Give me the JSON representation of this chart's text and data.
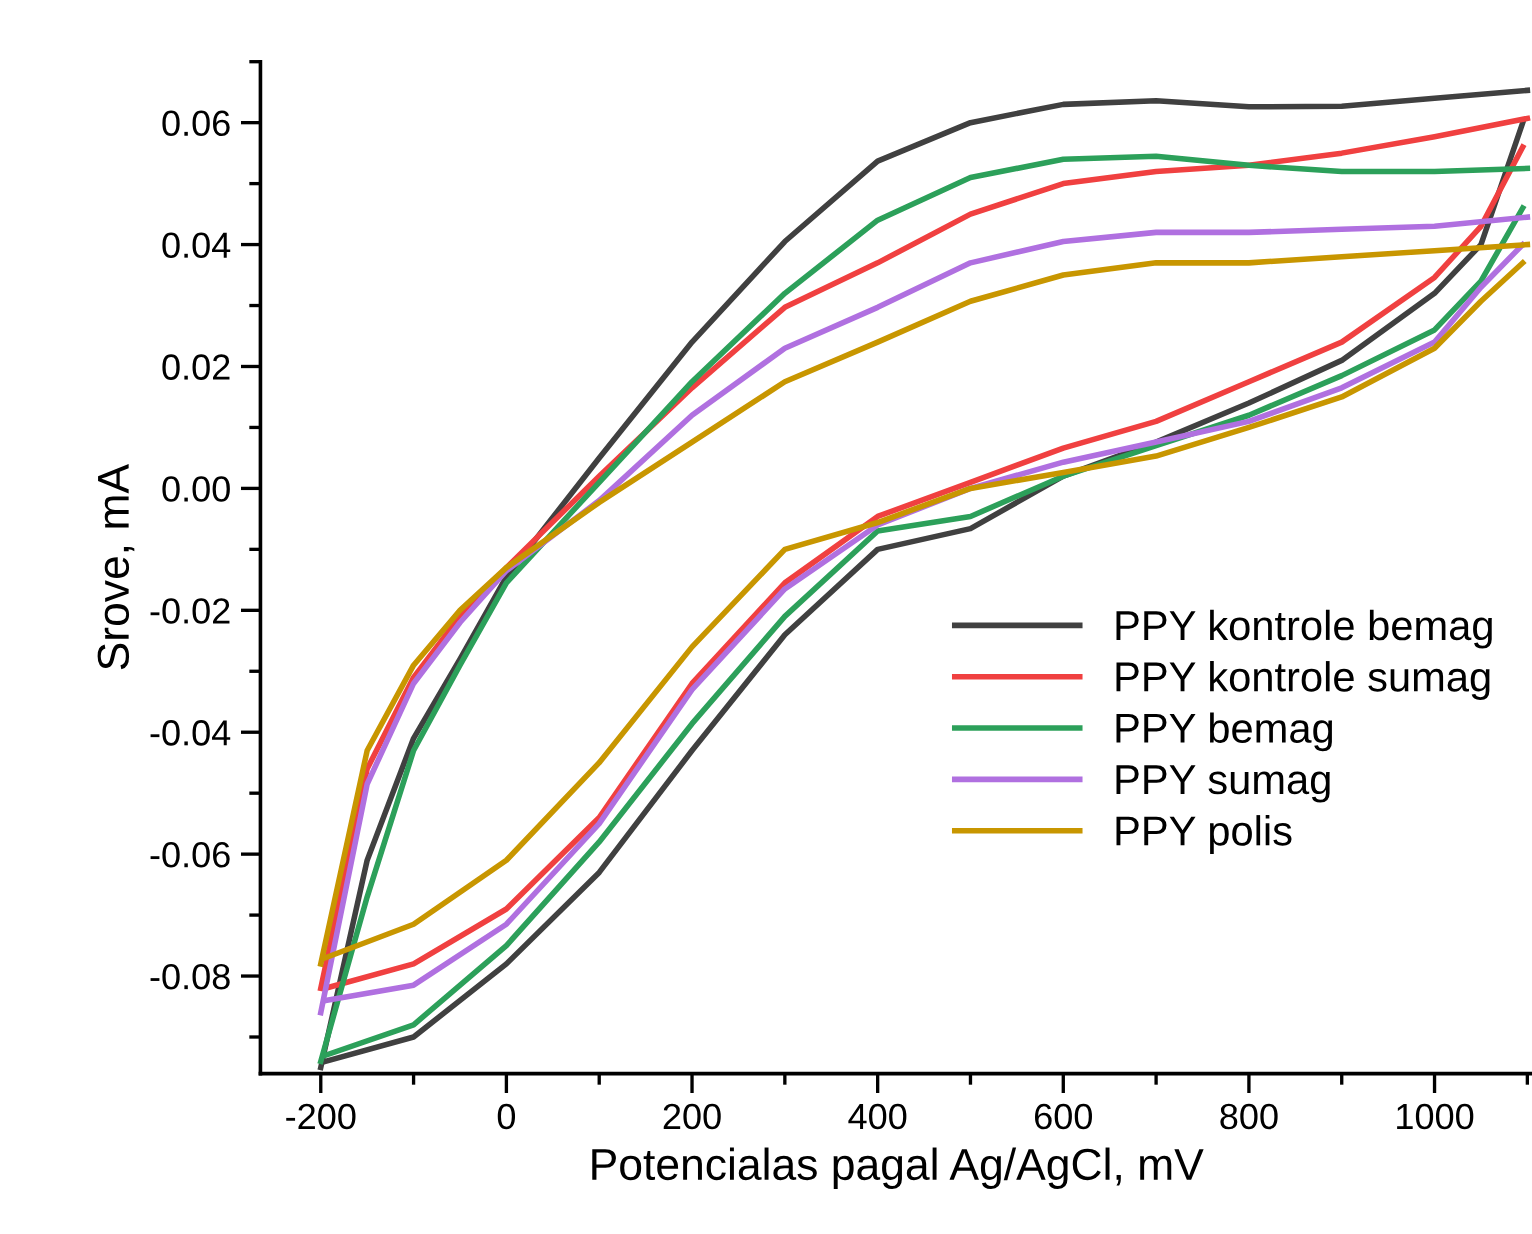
{
  "chart_data": {
    "type": "line",
    "xlabel": "Potencialas pagal Ag/AgCl, mV",
    "ylabel": "Srove, mA",
    "xlim": [
      -265,
      1105
    ],
    "ylim": [
      -0.096,
      0.07
    ],
    "xticks": [
      -200,
      0,
      200,
      400,
      600,
      800,
      1000
    ],
    "yticks": [
      {
        "value": -0.08,
        "label": "-0.08"
      },
      {
        "value": -0.06,
        "label": "-0.06"
      },
      {
        "value": -0.04,
        "label": "-0.04"
      },
      {
        "value": -0.02,
        "label": "-0.02"
      },
      {
        "value": 0,
        "label": "0.00"
      },
      {
        "value": 0.02,
        "label": "0.02"
      },
      {
        "value": 0.04,
        "label": "0.04"
      },
      {
        "value": 0.06,
        "label": "0.06"
      }
    ],
    "grid": false,
    "legend": "bottom right",
    "marker": "none",
    "line_style": "solid",
    "series": [
      {
        "name": "PPY kontrole bemag",
        "color": "#404040",
        "x": [
          -200,
          -150,
          -100,
          -50,
          0,
          100,
          200,
          300,
          400,
          500,
          600,
          700,
          800,
          900,
          1000,
          1100
        ],
        "values": [
          -0.095,
          -0.061,
          -0.041,
          -0.028,
          -0.0145,
          0.005,
          0.024,
          0.0405,
          0.0537,
          0.06,
          0.063,
          0.0636,
          0.0626,
          0.0627,
          0.064,
          0.0653
        ]
      },
      {
        "color": "#404040",
        "x": [
          -195,
          -100,
          0,
          100,
          200,
          300,
          400,
          500,
          600,
          700,
          800,
          900,
          1000,
          1050,
          1095
        ],
        "values": [
          -0.094,
          -0.09,
          -0.078,
          -0.063,
          -0.043,
          -0.024,
          -0.01,
          -0.0066,
          0.002,
          0.0076,
          0.014,
          0.021,
          0.032,
          0.04,
          0.06
        ]
      },
      {
        "name": "PPY kontrole sumag",
        "color": "#f04040",
        "x": [
          -200,
          -150,
          -100,
          -50,
          0,
          100,
          200,
          300,
          400,
          500,
          600,
          700,
          800,
          900,
          1000,
          1100
        ],
        "values": [
          -0.082,
          -0.046,
          -0.031,
          -0.021,
          -0.013,
          0.002,
          0.0165,
          0.0297,
          0.037,
          0.045,
          0.05,
          0.052,
          0.053,
          0.055,
          0.0577,
          0.0607
        ]
      },
      {
        "color": "#f04040",
        "x": [
          -195,
          -100,
          0,
          100,
          200,
          300,
          400,
          500,
          600,
          700,
          800,
          900,
          1000,
          1050,
          1095
        ],
        "values": [
          -0.082,
          -0.078,
          -0.069,
          -0.054,
          -0.032,
          -0.0155,
          -0.0046,
          0.001,
          0.0066,
          0.011,
          0.0175,
          0.024,
          0.0346,
          0.043,
          0.056
        ]
      },
      {
        "name": "PPY bemag",
        "color": "#2ca05a",
        "x": [
          -200,
          -150,
          -100,
          -50,
          0,
          100,
          200,
          300,
          400,
          500,
          600,
          700,
          800,
          900,
          1000,
          1100
        ],
        "values": [
          -0.094,
          -0.067,
          -0.043,
          -0.029,
          -0.0155,
          0.001,
          0.0175,
          0.032,
          0.044,
          0.051,
          0.054,
          0.0545,
          0.053,
          0.052,
          0.052,
          0.0525
        ]
      },
      {
        "color": "#2ca05a",
        "x": [
          -195,
          -100,
          0,
          100,
          200,
          300,
          400,
          500,
          600,
          700,
          800,
          900,
          1000,
          1050,
          1095
        ],
        "values": [
          -0.093,
          -0.088,
          -0.075,
          -0.058,
          -0.0386,
          -0.021,
          -0.007,
          -0.0046,
          0.002,
          0.007,
          0.012,
          0.0185,
          0.026,
          0.034,
          0.046
        ]
      },
      {
        "name": "PPY sumag",
        "color": "#b070e0",
        "x": [
          -200,
          -150,
          -100,
          -50,
          0,
          100,
          200,
          300,
          400,
          500,
          600,
          700,
          800,
          900,
          1000,
          1100
        ],
        "values": [
          -0.086,
          -0.0485,
          -0.032,
          -0.022,
          -0.0135,
          -0.002,
          0.012,
          0.023,
          0.0297,
          0.037,
          0.0405,
          0.042,
          0.042,
          0.0425,
          0.043,
          0.0445
        ]
      },
      {
        "color": "#b070e0",
        "x": [
          -195,
          -100,
          0,
          100,
          200,
          300,
          400,
          500,
          600,
          700,
          800,
          900,
          1000,
          1050,
          1095
        ],
        "values": [
          -0.084,
          -0.0815,
          -0.0715,
          -0.055,
          -0.033,
          -0.0165,
          -0.006,
          0.0,
          0.0043,
          0.0076,
          0.011,
          0.0165,
          0.024,
          0.033,
          0.04
        ]
      },
      {
        "name": "PPY polis",
        "color": "#c89600",
        "x": [
          -200,
          -150,
          -100,
          -50,
          0,
          100,
          200,
          300,
          400,
          500,
          600,
          700,
          800,
          900,
          1000,
          1100
        ],
        "values": [
          -0.078,
          -0.043,
          -0.029,
          -0.02,
          -0.013,
          -0.0023,
          0.0076,
          0.0175,
          0.024,
          0.0307,
          0.035,
          0.037,
          0.037,
          0.038,
          0.039,
          0.04
        ]
      },
      {
        "color": "#c89600",
        "x": [
          -195,
          -100,
          0,
          100,
          200,
          300,
          400,
          500,
          600,
          700,
          800,
          900,
          1000,
          1050,
          1095
        ],
        "values": [
          -0.077,
          -0.0715,
          -0.061,
          -0.045,
          -0.026,
          -0.01,
          -0.0056,
          0.0,
          0.0026,
          0.0053,
          0.01,
          0.015,
          0.023,
          0.0307,
          0.037
        ]
      }
    ]
  }
}
